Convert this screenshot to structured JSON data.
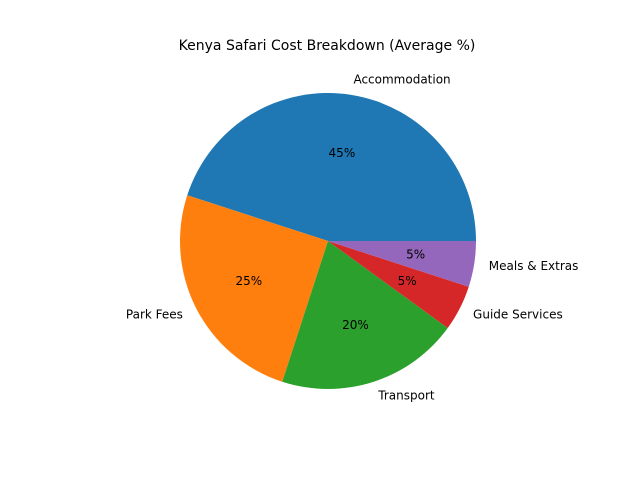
{
  "chart_data": {
    "type": "pie",
    "title": "Kenya Safari Cost Breakdown (Average %)",
    "labels": [
      "Accommodation",
      "Park Fees",
      "Transport",
      "Guide Services",
      "Meals & Extras"
    ],
    "values": [
      45,
      25,
      20,
      5,
      5
    ],
    "pct_labels": [
      "45%",
      "25%",
      "20%",
      "5%",
      "5%"
    ],
    "colors": [
      "#1f77b4",
      "#ff7f0e",
      "#2ca02c",
      "#d62728",
      "#9467bd"
    ],
    "start_angle_deg": 0,
    "direction": "counterclockwise",
    "legend": "none"
  }
}
